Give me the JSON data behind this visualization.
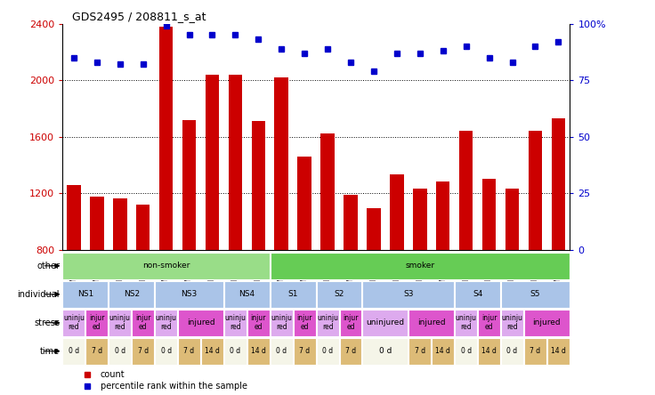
{
  "title": "GDS2495 / 208811_s_at",
  "gsm_labels": [
    "GSM122528",
    "GSM122531",
    "GSM122539",
    "GSM122540",
    "GSM122541",
    "GSM122542",
    "GSM122543",
    "GSM122544",
    "GSM122546",
    "GSM122527",
    "GSM122529",
    "GSM122530",
    "GSM122532",
    "GSM122533",
    "GSM122535",
    "GSM122536",
    "GSM122538",
    "GSM122534",
    "GSM122537",
    "GSM122545",
    "GSM122547",
    "GSM122548"
  ],
  "bar_values": [
    1260,
    1175,
    1165,
    1120,
    2380,
    1720,
    2040,
    2040,
    1710,
    2020,
    1460,
    1620,
    1190,
    1095,
    1330,
    1230,
    1280,
    1640,
    1300,
    1230,
    1640,
    1730
  ],
  "dot_values": [
    85,
    83,
    82,
    82,
    99,
    95,
    95,
    95,
    93,
    89,
    87,
    89,
    83,
    79,
    87,
    87,
    88,
    90,
    85,
    83,
    90,
    92
  ],
  "ylim_left": [
    800,
    2400
  ],
  "ylim_right": [
    0,
    100
  ],
  "yticks_left": [
    800,
    1200,
    1600,
    2000,
    2400
  ],
  "yticks_right": [
    0,
    25,
    50,
    75,
    100
  ],
  "bar_color": "#cc0000",
  "dot_color": "#0000cc",
  "chart_bg": "#ffffff",
  "xtick_bg": "#cccccc",
  "other_row": {
    "label": "other",
    "items": [
      {
        "text": "non-smoker",
        "start": 0,
        "end": 9,
        "color": "#99dd88"
      },
      {
        "text": "smoker",
        "start": 9,
        "end": 22,
        "color": "#66cc55"
      }
    ]
  },
  "individual_row": {
    "label": "individual",
    "items": [
      {
        "text": "NS1",
        "start": 0,
        "end": 2,
        "color": "#aac4e8"
      },
      {
        "text": "NS2",
        "start": 2,
        "end": 4,
        "color": "#aac4e8"
      },
      {
        "text": "NS3",
        "start": 4,
        "end": 7,
        "color": "#aac4e8"
      },
      {
        "text": "NS4",
        "start": 7,
        "end": 9,
        "color": "#aac4e8"
      },
      {
        "text": "S1",
        "start": 9,
        "end": 11,
        "color": "#aac4e8"
      },
      {
        "text": "S2",
        "start": 11,
        "end": 13,
        "color": "#aac4e8"
      },
      {
        "text": "S3",
        "start": 13,
        "end": 17,
        "color": "#aac4e8"
      },
      {
        "text": "S4",
        "start": 17,
        "end": 19,
        "color": "#aac4e8"
      },
      {
        "text": "S5",
        "start": 19,
        "end": 22,
        "color": "#aac4e8"
      }
    ]
  },
  "stress_row": {
    "label": "stress",
    "items": [
      {
        "text": "uninju\nred",
        "start": 0,
        "end": 1,
        "color": "#ddaaee"
      },
      {
        "text": "injur\ned",
        "start": 1,
        "end": 2,
        "color": "#dd55cc"
      },
      {
        "text": "uninju\nred",
        "start": 2,
        "end": 3,
        "color": "#ddaaee"
      },
      {
        "text": "injur\ned",
        "start": 3,
        "end": 4,
        "color": "#dd55cc"
      },
      {
        "text": "uninju\nred",
        "start": 4,
        "end": 5,
        "color": "#ddaaee"
      },
      {
        "text": "injured",
        "start": 5,
        "end": 7,
        "color": "#dd55cc"
      },
      {
        "text": "uninju\nred",
        "start": 7,
        "end": 8,
        "color": "#ddaaee"
      },
      {
        "text": "injur\ned",
        "start": 8,
        "end": 9,
        "color": "#dd55cc"
      },
      {
        "text": "uninju\nred",
        "start": 9,
        "end": 10,
        "color": "#ddaaee"
      },
      {
        "text": "injur\ned",
        "start": 10,
        "end": 11,
        "color": "#dd55cc"
      },
      {
        "text": "uninju\nred",
        "start": 11,
        "end": 12,
        "color": "#ddaaee"
      },
      {
        "text": "injur\ned",
        "start": 12,
        "end": 13,
        "color": "#dd55cc"
      },
      {
        "text": "uninjured",
        "start": 13,
        "end": 15,
        "color": "#ddaaee"
      },
      {
        "text": "injured",
        "start": 15,
        "end": 17,
        "color": "#dd55cc"
      },
      {
        "text": "uninju\nred",
        "start": 17,
        "end": 18,
        "color": "#ddaaee"
      },
      {
        "text": "injur\ned",
        "start": 18,
        "end": 19,
        "color": "#dd55cc"
      },
      {
        "text": "uninju\nred",
        "start": 19,
        "end": 20,
        "color": "#ddaaee"
      },
      {
        "text": "injured",
        "start": 20,
        "end": 22,
        "color": "#dd55cc"
      }
    ]
  },
  "time_row": {
    "label": "time",
    "items": [
      {
        "text": "0 d",
        "start": 0,
        "end": 1,
        "color": "#f5f5e8"
      },
      {
        "text": "7 d",
        "start": 1,
        "end": 2,
        "color": "#ddbb77"
      },
      {
        "text": "0 d",
        "start": 2,
        "end": 3,
        "color": "#f5f5e8"
      },
      {
        "text": "7 d",
        "start": 3,
        "end": 4,
        "color": "#ddbb77"
      },
      {
        "text": "0 d",
        "start": 4,
        "end": 5,
        "color": "#f5f5e8"
      },
      {
        "text": "7 d",
        "start": 5,
        "end": 6,
        "color": "#ddbb77"
      },
      {
        "text": "14 d",
        "start": 6,
        "end": 7,
        "color": "#ddbb77"
      },
      {
        "text": "0 d",
        "start": 7,
        "end": 8,
        "color": "#f5f5e8"
      },
      {
        "text": "14 d",
        "start": 8,
        "end": 9,
        "color": "#ddbb77"
      },
      {
        "text": "0 d",
        "start": 9,
        "end": 10,
        "color": "#f5f5e8"
      },
      {
        "text": "7 d",
        "start": 10,
        "end": 11,
        "color": "#ddbb77"
      },
      {
        "text": "0 d",
        "start": 11,
        "end": 12,
        "color": "#f5f5e8"
      },
      {
        "text": "7 d",
        "start": 12,
        "end": 13,
        "color": "#ddbb77"
      },
      {
        "text": "0 d",
        "start": 13,
        "end": 15,
        "color": "#f5f5e8"
      },
      {
        "text": "7 d",
        "start": 15,
        "end": 16,
        "color": "#ddbb77"
      },
      {
        "text": "14 d",
        "start": 16,
        "end": 17,
        "color": "#ddbb77"
      },
      {
        "text": "0 d",
        "start": 17,
        "end": 18,
        "color": "#f5f5e8"
      },
      {
        "text": "14 d",
        "start": 18,
        "end": 19,
        "color": "#ddbb77"
      },
      {
        "text": "0 d",
        "start": 19,
        "end": 20,
        "color": "#f5f5e8"
      },
      {
        "text": "7 d",
        "start": 20,
        "end": 21,
        "color": "#ddbb77"
      },
      {
        "text": "14 d",
        "start": 21,
        "end": 22,
        "color": "#ddbb77"
      }
    ]
  },
  "legend_count_color": "#cc0000",
  "legend_dot_color": "#0000cc",
  "legend_count_label": "count",
  "legend_dot_label": "percentile rank within the sample"
}
